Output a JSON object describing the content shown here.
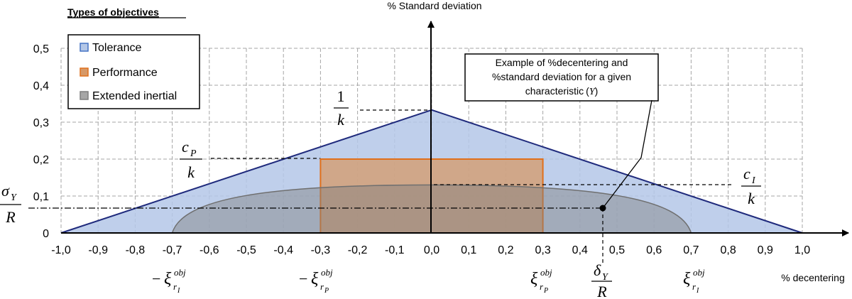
{
  "axes": {
    "y_title": "% Standard deviation",
    "x_title": "% decentering",
    "x_ticks": [
      "-1,0",
      "-0,9",
      "-0,8",
      "-0,7",
      "-0,6",
      "-0,5",
      "-0,4",
      "-0,3",
      "-0,2",
      "-0,1",
      "0,0",
      "0,1",
      "0,2",
      "0,3",
      "0,4",
      "0,5",
      "0,6",
      "0,7",
      "0,8",
      "0,9",
      "1,0"
    ],
    "y_ticks": [
      "0",
      "0,1",
      "0,2",
      "0,3",
      "0,4",
      "0,5"
    ]
  },
  "legend": {
    "title": "Types of objectives",
    "items": [
      {
        "label": "Tolerance",
        "color": "#4472c4"
      },
      {
        "label": "Performance",
        "color": "#ed7d31"
      },
      {
        "label": "Extended inertial",
        "color": "#7f7f7f"
      }
    ]
  },
  "callout": {
    "line1": "Example of %decentering and",
    "line2": "%standard deviation for a given",
    "line3_text": "characteristic",
    "line3_open": "(",
    "line3_var": "Y",
    "line3_close": ")"
  },
  "math": {
    "one": "1",
    "k": "k",
    "c": "c",
    "P": "P",
    "I": "I",
    "sigma": "σ",
    "Y": "Y",
    "R": "R",
    "delta": "δ",
    "xi": "ξ",
    "minus": "−",
    "obj": "obj",
    "r": "r"
  },
  "chart_data": {
    "type": "area",
    "xlim": [
      -1.0,
      1.0
    ],
    "ylim": [
      0,
      0.5
    ],
    "grid": true,
    "legend_position": "top-left",
    "series": [
      {
        "name": "Tolerance",
        "x": [
          -1.0,
          0.0,
          1.0
        ],
        "y": [
          0,
          0.333,
          0
        ],
        "color": "#4472c4"
      },
      {
        "name": "Performance",
        "x": [
          -0.3,
          -0.3,
          0.3,
          0.3
        ],
        "y": [
          0,
          0.2,
          0.2,
          0
        ],
        "color": "#ed7d31"
      },
      {
        "name": "Extended inertial",
        "x": [
          -0.7,
          0.0,
          0.7
        ],
        "y": [
          0,
          0.13,
          0
        ],
        "color": "#7f7f7f"
      }
    ],
    "reference_levels": {
      "one_over_k": 0.333,
      "cP_over_k": 0.2,
      "cI_over_k": 0.13,
      "sigmaY_over_R": 0.065
    },
    "example_point": {
      "x": 0.46,
      "y": 0.065
    }
  }
}
